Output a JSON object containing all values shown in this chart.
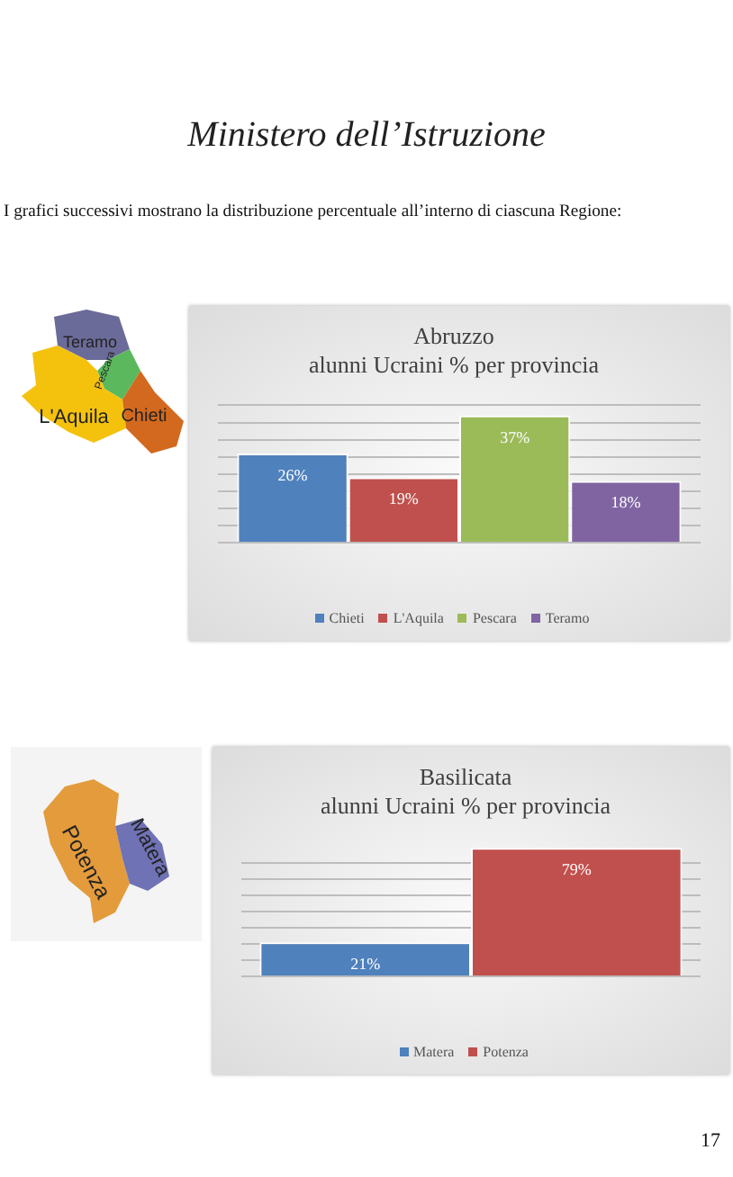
{
  "chart_data": [
    {
      "type": "bar",
      "title": "Abruzzo",
      "subtitle": "alunni Ucraini % per provincia",
      "categories": [
        null
      ],
      "series": [
        {
          "name": "Chieti",
          "color": "#4f81bd",
          "values": [
            26
          ],
          "value_labels": [
            "26%"
          ]
        },
        {
          "name": "L'Aquila",
          "color": "#c0504d",
          "values": [
            19
          ],
          "value_labels": [
            "19%"
          ]
        },
        {
          "name": "Pescara",
          "color": "#9bbb59",
          "values": [
            37
          ],
          "value_labels": [
            "37%"
          ]
        },
        {
          "name": "Teramo",
          "color": "#8064a2",
          "values": [
            18
          ],
          "value_labels": [
            "18%"
          ]
        }
      ],
      "ylim": [
        0,
        40
      ],
      "yticks": [
        {
          "value": 0,
          "label": null
        },
        {
          "value": 5,
          "label": null
        },
        {
          "value": 10,
          "label": null
        },
        {
          "value": 15,
          "label": null
        },
        {
          "value": 20,
          "label": null
        },
        {
          "value": 25,
          "label": null
        },
        {
          "value": 30,
          "label": null
        },
        {
          "value": 35,
          "label": null
        },
        {
          "value": 40,
          "label": null
        }
      ],
      "grid": "y",
      "legend": "bottom",
      "annotations": [
        "Ministero dell’Istruzione",
        "I grafici successivi mostrano la distribuzione percentuale all’interno di ciascuna Regione:",
        "Teramo",
        "Pescara",
        "L'Aquila",
        "Chieti"
      ]
    },
    {
      "type": "bar",
      "title": "Basilicata",
      "subtitle": "alunni Ucraini % per provincia",
      "categories": [
        null
      ],
      "series": [
        {
          "name": "Matera",
          "color": "#4f81bd",
          "values": [
            21
          ],
          "value_labels": [
            "21%"
          ]
        },
        {
          "name": "Potenza",
          "color": "#c0504d",
          "values": [
            79
          ],
          "value_labels": [
            "79%"
          ]
        }
      ],
      "ylim": [
        0,
        80
      ],
      "yticks": [
        {
          "value": 0,
          "label": null
        },
        {
          "value": 10,
          "label": null
        },
        {
          "value": 20,
          "label": null
        },
        {
          "value": 30,
          "label": null
        },
        {
          "value": 40,
          "label": null
        },
        {
          "value": 50,
          "label": null
        },
        {
          "value": 60,
          "label": null
        },
        {
          "value": 70,
          "label": null
        }
      ],
      "grid": "y",
      "legend": "bottom",
      "annotations": [
        "Potenza",
        "Matera",
        "17"
      ]
    }
  ]
}
